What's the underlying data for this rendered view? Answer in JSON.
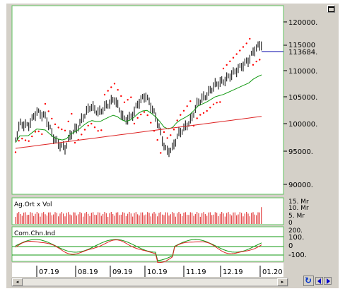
{
  "price_panel": {
    "ticks": [
      "120000.",
      "115000",
      "110000.",
      "105000.",
      "100000.",
      "95000.",
      "90000."
    ],
    "last_label": "113684."
  },
  "volume_panel": {
    "label": "Ag.Ort x Vol",
    "ticks": [
      "15. Mr",
      "10. Mr",
      "5. Mr",
      "0"
    ]
  },
  "cci_panel": {
    "label": "Com.Chn.Ind",
    "ticks": [
      "200.",
      "100.",
      "0",
      "-100."
    ]
  },
  "time_axis": {
    "labels": [
      "07.19",
      "08.19",
      "09.19",
      "10.19",
      "11.19",
      "12.19",
      "01.20"
    ]
  },
  "colors": {
    "panel_bg": "#ffffff",
    "frame": "#d4d0c8",
    "border_green": "#5fc35f",
    "parabolic_sar": "#ff0000",
    "ma_short": "#119911",
    "ma_long": "#dd2222",
    "price_bars": "#000000",
    "volume": "#dd2222",
    "last_line": "#0000aa"
  },
  "icons": {
    "maximize": "maximize-icon",
    "refresh": "refresh-icon",
    "scroll_left": "arrow-left-icon",
    "scroll_right": "arrow-right-icon"
  }
}
